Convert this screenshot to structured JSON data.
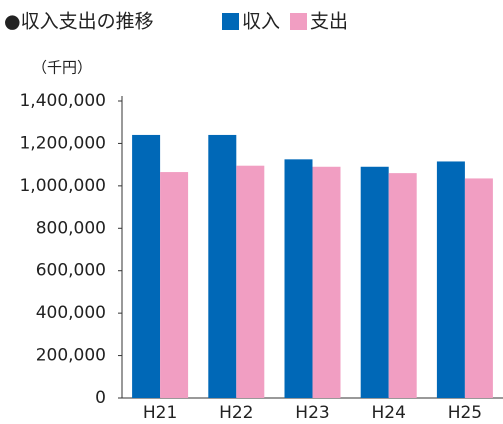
{
  "chart_data": {
    "type": "bar",
    "title": "●収入支出の推移",
    "y_unit": "（千円）",
    "categories": [
      "H21",
      "H22",
      "H23",
      "H24",
      "H25"
    ],
    "series": [
      {
        "name": "収入",
        "color": "#0068b7",
        "values": [
          1240000,
          1240000,
          1125000,
          1090000,
          1115000
        ]
      },
      {
        "name": "支出",
        "color": "#f19ec2",
        "values": [
          1065000,
          1095000,
          1090000,
          1060000,
          1035000
        ]
      }
    ],
    "ylim": [
      0,
      1400000
    ],
    "yticks": [
      0,
      {
        "value": 200000,
        "label": "200,000"
      },
      {
        "value": 400000,
        "label": "400,000"
      },
      {
        "value": 600000,
        "label": "600,000"
      },
      {
        "value": 800000,
        "label": "800,000"
      },
      {
        "value": 1000000,
        "label": "1,000,000"
      },
      {
        "value": 1200000,
        "label": "1,200,000"
      },
      {
        "value": 1400000,
        "label": "1,400,000"
      }
    ],
    "grid": false
  }
}
